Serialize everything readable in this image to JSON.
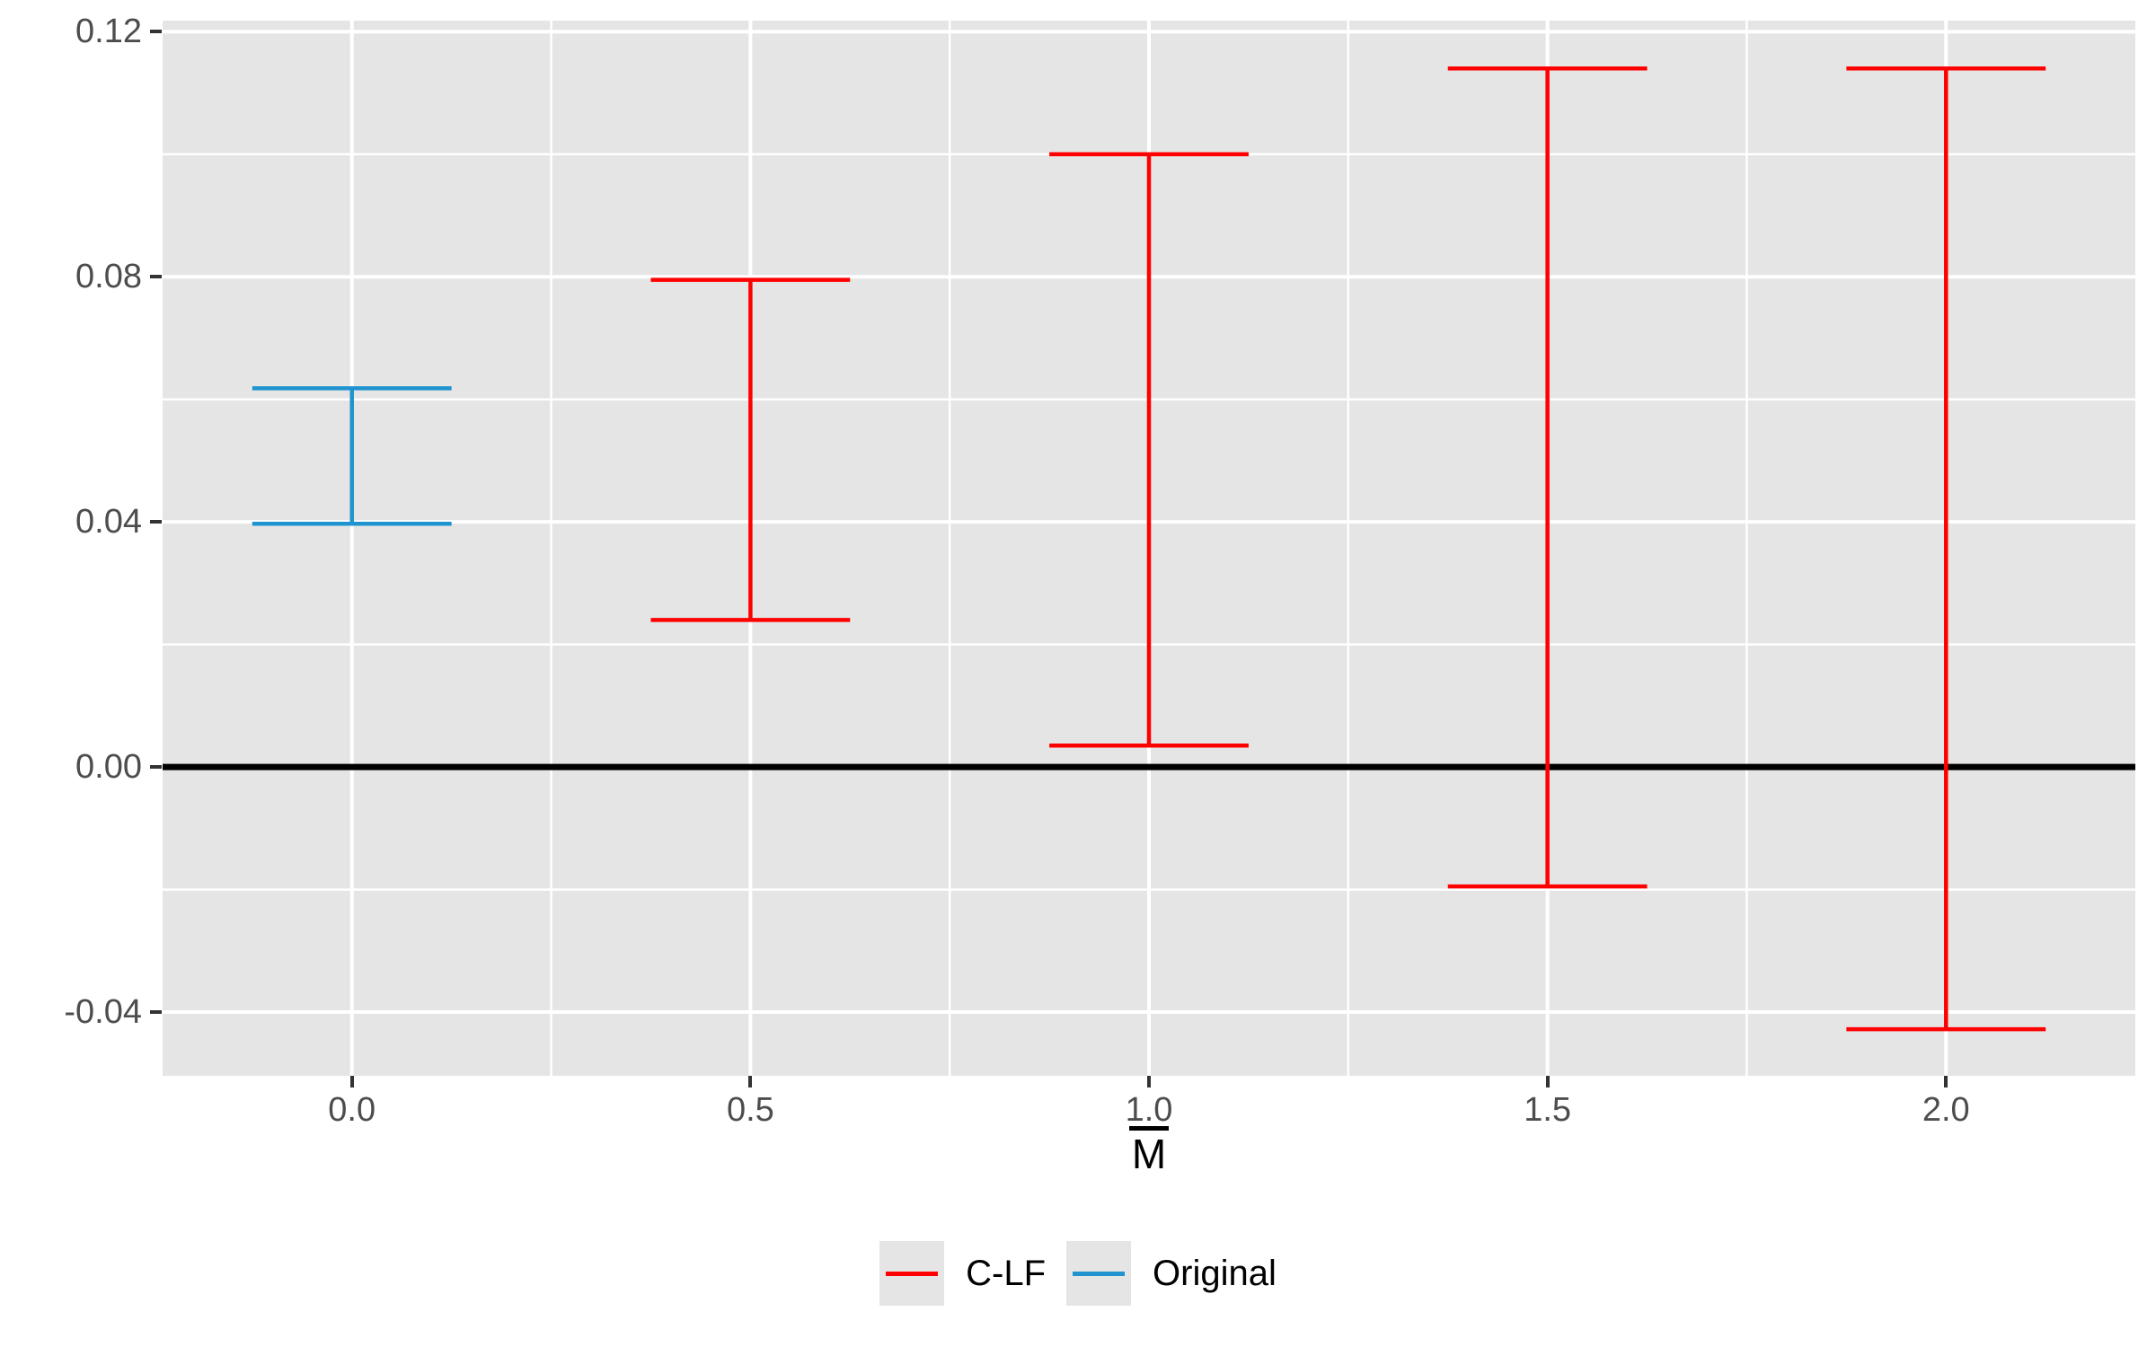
{
  "chart_data": {
    "type": "errorbar",
    "title": "",
    "xlabel": "M̄",
    "xlabel_base": "M",
    "ylabel": "",
    "x_axis": {
      "tick_labels": [
        "0.0",
        "0.5",
        "1.0",
        "1.5",
        "2.0"
      ],
      "tick_values": [
        0,
        0.5,
        1,
        1.5,
        2
      ],
      "minor_breaks": [
        0.25,
        0.75,
        1.25,
        1.75
      ],
      "range": [
        -0.2375,
        2.2375
      ]
    },
    "y_axis": {
      "tick_labels": [
        "-0.04",
        "0.00",
        "0.04",
        "0.08",
        "0.12"
      ],
      "tick_values": [
        -0.04,
        0,
        0.04,
        0.08,
        0.12
      ],
      "minor_breaks": [
        -0.02,
        0.02,
        0.06,
        0.1
      ],
      "range": [
        -0.0504,
        0.1218
      ]
    },
    "reference_line": {
      "y": 0,
      "color": "#000000"
    },
    "cap_half_width": 0.125,
    "series": [
      {
        "name": "C-LF",
        "color": "#FF0000",
        "points": [
          {
            "x": 0.5,
            "ymin": 0.024,
            "ymax": 0.0795
          },
          {
            "x": 1.0,
            "ymin": 0.0035,
            "ymax": 0.1
          },
          {
            "x": 1.5,
            "ymin": -0.0195,
            "ymax": 0.114
          },
          {
            "x": 2.0,
            "ymin": -0.0428,
            "ymax": 0.114
          }
        ]
      },
      {
        "name": "Original",
        "color": "#1F94CF",
        "points": [
          {
            "x": 0.0,
            "ymin": 0.0397,
            "ymax": 0.0618
          }
        ]
      }
    ],
    "grid": true,
    "legend_position": "bottom"
  },
  "legend": {
    "items": [
      {
        "label": "C-LF",
        "color": "#FF0000"
      },
      {
        "label": "Original",
        "color": "#1F94CF"
      }
    ]
  },
  "colors": {
    "panel_background": "#E5E5E5",
    "gridline": "#FFFFFF",
    "tick_text": "#4D4D4D",
    "axis_title": "#000000",
    "reference_line": "#000000",
    "legend_key_background": "#E5E5E5"
  }
}
